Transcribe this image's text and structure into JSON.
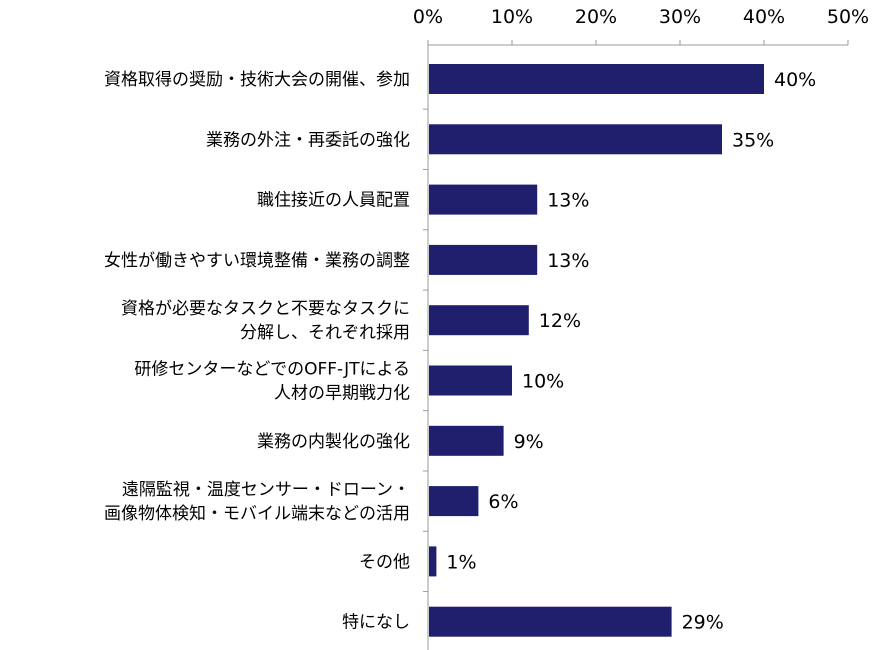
{
  "chart_data": {
    "type": "bar",
    "orientation": "horizontal",
    "title": "",
    "xlabel": "",
    "ylabel": "",
    "xlim": [
      0,
      50
    ],
    "x_ticks": [
      "0%",
      "10%",
      "20%",
      "30%",
      "40%",
      "50%"
    ],
    "x_tick_values": [
      0,
      10,
      20,
      30,
      40,
      50
    ],
    "x_axis_position": "top",
    "grid": false,
    "legend": "none",
    "bar_color": "#1F1F6E",
    "categories": [
      [
        "資格取得の奨励・技術大会の開催、参加"
      ],
      [
        "業務の外注・再委託の強化"
      ],
      [
        "職住接近の人員配置"
      ],
      [
        "女性が働きやすい環境整備・業務の調整"
      ],
      [
        "資格が必要なタスクと不要なタスクに",
        "分解し、それぞれ採用"
      ],
      [
        "研修センターなどでのOFF-JTによる",
        "人材の早期戦力化"
      ],
      [
        "業務の内製化の強化"
      ],
      [
        "遠隔監視・温度センサー・ドローン・",
        "画像物体検知・モバイル端末などの活用"
      ],
      [
        "その他"
      ],
      [
        "特になし"
      ]
    ],
    "values": [
      40,
      35,
      13,
      13,
      12,
      10,
      9,
      6,
      1,
      29
    ],
    "value_labels": [
      "40%",
      "35%",
      "13%",
      "13%",
      "12%",
      "10%",
      "9%",
      "6%",
      "1%",
      "29%"
    ]
  }
}
